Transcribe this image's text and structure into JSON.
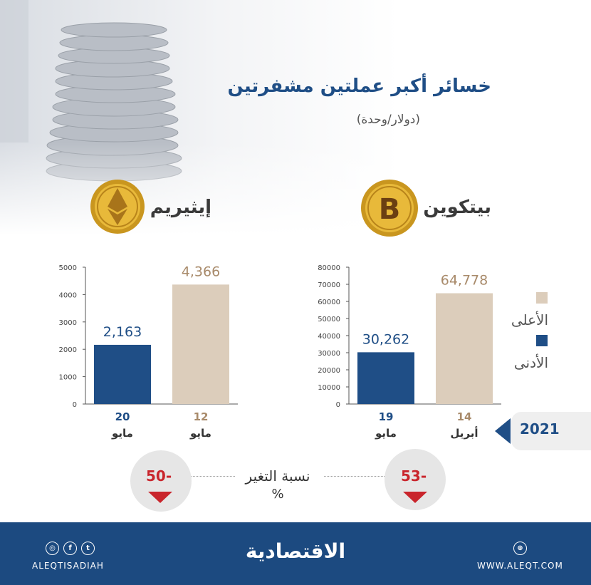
{
  "header": {
    "title": "خسائر أكبر عملتين مشفرتين",
    "subtitle": "(دولار/وحدة)"
  },
  "coins": {
    "bitcoin_name": "بيتكوين",
    "ethereum_name": "إيثيريم"
  },
  "legend": {
    "high_label": "الأعلى",
    "low_label": "الأدنى",
    "high_color": "#dccdbb",
    "low_color": "#1f4e86"
  },
  "year": "2021",
  "change": {
    "label": "نسبة التغير",
    "unit": "%",
    "bitcoin_value": "53-",
    "ethereum_value": "50-"
  },
  "footer": {
    "logo_text": "الاقتصادية",
    "left_handle": "ALEQTISADIAH",
    "right_url": "WWW.ALEQT.COM"
  },
  "chart_data": [
    {
      "type": "bar",
      "name": "ethereum",
      "categories": [
        "20 مايو",
        "12 مايو"
      ],
      "day_labels": [
        "20",
        "12"
      ],
      "month_labels": [
        "مايو",
        "مايو"
      ],
      "values": [
        2163,
        4366
      ],
      "value_labels": [
        "2,163",
        "4,366"
      ],
      "colors": [
        "#1f4e86",
        "#dccdbb"
      ],
      "label_colors": [
        "#1f4e86",
        "#a88a6a"
      ],
      "ylim": [
        0,
        5000
      ],
      "yticks": [
        0,
        1000,
        2000,
        3000,
        4000,
        5000
      ]
    },
    {
      "type": "bar",
      "name": "bitcoin",
      "categories": [
        "19 مايو",
        "14 أبريل"
      ],
      "day_labels": [
        "19",
        "14"
      ],
      "month_labels": [
        "مايو",
        "أبريل"
      ],
      "values": [
        30262,
        64778
      ],
      "value_labels": [
        "30,262",
        "64,778"
      ],
      "colors": [
        "#1f4e86",
        "#dccdbb"
      ],
      "label_colors": [
        "#1f4e86",
        "#a88a6a"
      ],
      "ylim": [
        0,
        80000
      ],
      "yticks": [
        0,
        10000,
        20000,
        30000,
        40000,
        50000,
        60000,
        70000,
        80000
      ]
    }
  ]
}
